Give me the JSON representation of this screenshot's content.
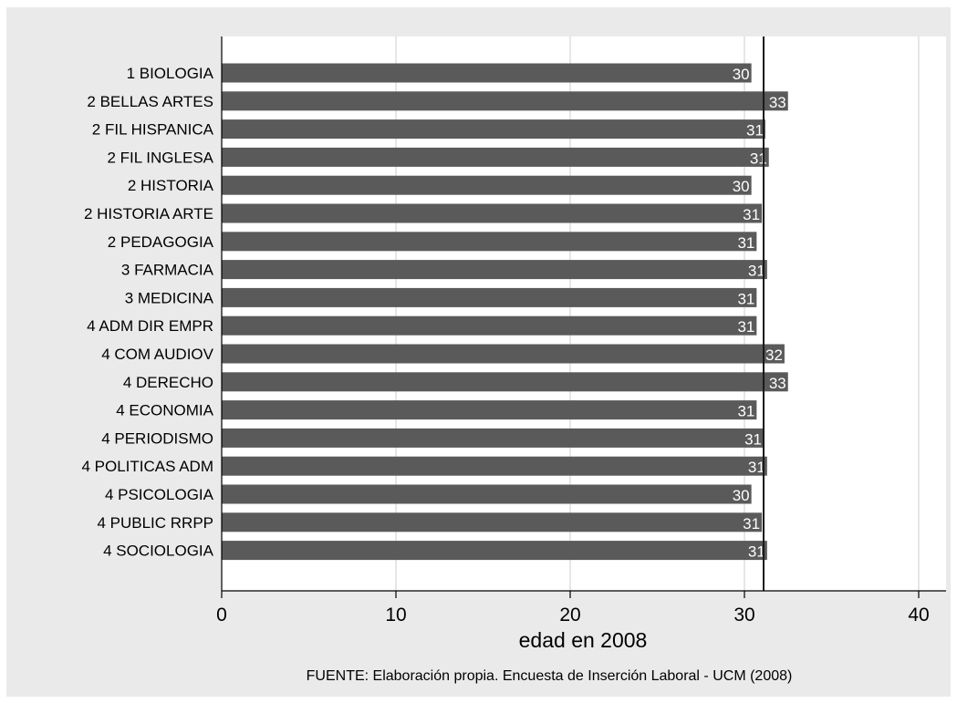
{
  "chart_data": {
    "type": "bar",
    "orientation": "horizontal",
    "categories": [
      "1 BIOLOGIA",
      "2 BELLAS ARTES",
      "2 FIL HISPANICA",
      "2 FIL INGLESA",
      "2 HISTORIA",
      "2 HISTORIA ARTE",
      "2 PEDAGOGIA",
      "3 FARMACIA",
      "3 MEDICINA",
      "4 ADM DIR EMPR",
      "4 COM AUDIOV",
      "4 DERECHO",
      "4 ECONOMIA",
      "4 PERIODISMO",
      "4 POLITICAS ADM",
      "4 PSICOLOGIA",
      "4 PUBLIC RRPP",
      "4 SOCIOLOGIA"
    ],
    "values": [
      30.4,
      32.5,
      31.2,
      31.4,
      30.4,
      31.0,
      30.7,
      31.3,
      30.7,
      30.7,
      32.3,
      32.5,
      30.7,
      31.1,
      31.3,
      30.4,
      31.0,
      31.3
    ],
    "bar_labels": [
      "30",
      "33",
      "31",
      "31",
      "30",
      "31",
      "31",
      "31",
      "31",
      "31",
      "32",
      "33",
      "31",
      "31",
      "31",
      "30",
      "31",
      "31"
    ],
    "reference_line": 31.1,
    "xlabel": "edad en 2008",
    "xlim": [
      0,
      41.5
    ],
    "xticks": [
      0,
      10,
      20,
      30,
      40
    ],
    "xtick_labels": [
      "0",
      "10",
      "20",
      "30",
      "40"
    ],
    "grid": true,
    "note": "FUENTE: Elaboración propia. Encuesta de Inserción Laboral - UCM (2008)",
    "colors": {
      "background": "#eaeaea",
      "plot_background": "#ffffff",
      "bar": "#5a5a5a",
      "bar_label": "#ffffff",
      "reference_line": "#1a1a1a",
      "grid": "#e6e6e6"
    }
  }
}
